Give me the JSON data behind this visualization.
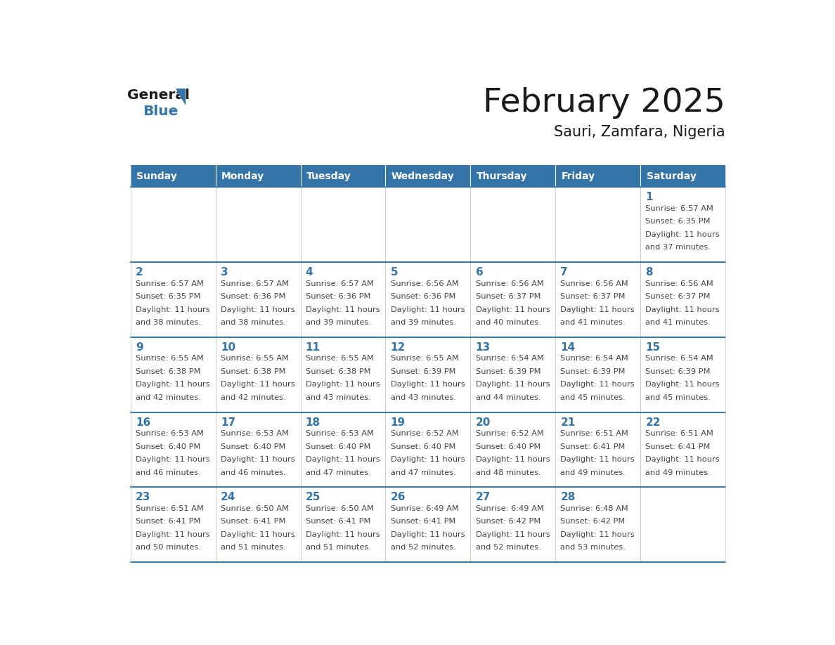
{
  "title": "February 2025",
  "subtitle": "Sauri, Zamfara, Nigeria",
  "header_color": "#3574A8",
  "header_text_color": "#FFFFFF",
  "border_color": "#3574A8",
  "day_headers": [
    "Sunday",
    "Monday",
    "Tuesday",
    "Wednesday",
    "Thursday",
    "Friday",
    "Saturday"
  ],
  "title_color": "#1a1a1a",
  "subtitle_color": "#1a1a1a",
  "day_num_color": "#3574A8",
  "cell_text_color": "#444444",
  "logo_general_color": "#1a1a1a",
  "logo_blue_color": "#3574A8",
  "logo_triangle_color": "#3574A8",
  "calendar_data": [
    [
      {
        "day": null,
        "sunrise": null,
        "sunset": null,
        "daylight": null
      },
      {
        "day": null,
        "sunrise": null,
        "sunset": null,
        "daylight": null
      },
      {
        "day": null,
        "sunrise": null,
        "sunset": null,
        "daylight": null
      },
      {
        "day": null,
        "sunrise": null,
        "sunset": null,
        "daylight": null
      },
      {
        "day": null,
        "sunrise": null,
        "sunset": null,
        "daylight": null
      },
      {
        "day": null,
        "sunrise": null,
        "sunset": null,
        "daylight": null
      },
      {
        "day": 1,
        "sunrise": "6:57 AM",
        "sunset": "6:35 PM",
        "daylight_line1": "Daylight: 11 hours",
        "daylight_line2": "and 37 minutes."
      }
    ],
    [
      {
        "day": 2,
        "sunrise": "6:57 AM",
        "sunset": "6:35 PM",
        "daylight_line1": "Daylight: 11 hours",
        "daylight_line2": "and 38 minutes."
      },
      {
        "day": 3,
        "sunrise": "6:57 AM",
        "sunset": "6:36 PM",
        "daylight_line1": "Daylight: 11 hours",
        "daylight_line2": "and 38 minutes."
      },
      {
        "day": 4,
        "sunrise": "6:57 AM",
        "sunset": "6:36 PM",
        "daylight_line1": "Daylight: 11 hours",
        "daylight_line2": "and 39 minutes."
      },
      {
        "day": 5,
        "sunrise": "6:56 AM",
        "sunset": "6:36 PM",
        "daylight_line1": "Daylight: 11 hours",
        "daylight_line2": "and 39 minutes."
      },
      {
        "day": 6,
        "sunrise": "6:56 AM",
        "sunset": "6:37 PM",
        "daylight_line1": "Daylight: 11 hours",
        "daylight_line2": "and 40 minutes."
      },
      {
        "day": 7,
        "sunrise": "6:56 AM",
        "sunset": "6:37 PM",
        "daylight_line1": "Daylight: 11 hours",
        "daylight_line2": "and 41 minutes."
      },
      {
        "day": 8,
        "sunrise": "6:56 AM",
        "sunset": "6:37 PM",
        "daylight_line1": "Daylight: 11 hours",
        "daylight_line2": "and 41 minutes."
      }
    ],
    [
      {
        "day": 9,
        "sunrise": "6:55 AM",
        "sunset": "6:38 PM",
        "daylight_line1": "Daylight: 11 hours",
        "daylight_line2": "and 42 minutes."
      },
      {
        "day": 10,
        "sunrise": "6:55 AM",
        "sunset": "6:38 PM",
        "daylight_line1": "Daylight: 11 hours",
        "daylight_line2": "and 42 minutes."
      },
      {
        "day": 11,
        "sunrise": "6:55 AM",
        "sunset": "6:38 PM",
        "daylight_line1": "Daylight: 11 hours",
        "daylight_line2": "and 43 minutes."
      },
      {
        "day": 12,
        "sunrise": "6:55 AM",
        "sunset": "6:39 PM",
        "daylight_line1": "Daylight: 11 hours",
        "daylight_line2": "and 43 minutes."
      },
      {
        "day": 13,
        "sunrise": "6:54 AM",
        "sunset": "6:39 PM",
        "daylight_line1": "Daylight: 11 hours",
        "daylight_line2": "and 44 minutes."
      },
      {
        "day": 14,
        "sunrise": "6:54 AM",
        "sunset": "6:39 PM",
        "daylight_line1": "Daylight: 11 hours",
        "daylight_line2": "and 45 minutes."
      },
      {
        "day": 15,
        "sunrise": "6:54 AM",
        "sunset": "6:39 PM",
        "daylight_line1": "Daylight: 11 hours",
        "daylight_line2": "and 45 minutes."
      }
    ],
    [
      {
        "day": 16,
        "sunrise": "6:53 AM",
        "sunset": "6:40 PM",
        "daylight_line1": "Daylight: 11 hours",
        "daylight_line2": "and 46 minutes."
      },
      {
        "day": 17,
        "sunrise": "6:53 AM",
        "sunset": "6:40 PM",
        "daylight_line1": "Daylight: 11 hours",
        "daylight_line2": "and 46 minutes."
      },
      {
        "day": 18,
        "sunrise": "6:53 AM",
        "sunset": "6:40 PM",
        "daylight_line1": "Daylight: 11 hours",
        "daylight_line2": "and 47 minutes."
      },
      {
        "day": 19,
        "sunrise": "6:52 AM",
        "sunset": "6:40 PM",
        "daylight_line1": "Daylight: 11 hours",
        "daylight_line2": "and 47 minutes."
      },
      {
        "day": 20,
        "sunrise": "6:52 AM",
        "sunset": "6:40 PM",
        "daylight_line1": "Daylight: 11 hours",
        "daylight_line2": "and 48 minutes."
      },
      {
        "day": 21,
        "sunrise": "6:51 AM",
        "sunset": "6:41 PM",
        "daylight_line1": "Daylight: 11 hours",
        "daylight_line2": "and 49 minutes."
      },
      {
        "day": 22,
        "sunrise": "6:51 AM",
        "sunset": "6:41 PM",
        "daylight_line1": "Daylight: 11 hours",
        "daylight_line2": "and 49 minutes."
      }
    ],
    [
      {
        "day": 23,
        "sunrise": "6:51 AM",
        "sunset": "6:41 PM",
        "daylight_line1": "Daylight: 11 hours",
        "daylight_line2": "and 50 minutes."
      },
      {
        "day": 24,
        "sunrise": "6:50 AM",
        "sunset": "6:41 PM",
        "daylight_line1": "Daylight: 11 hours",
        "daylight_line2": "and 51 minutes."
      },
      {
        "day": 25,
        "sunrise": "6:50 AM",
        "sunset": "6:41 PM",
        "daylight_line1": "Daylight: 11 hours",
        "daylight_line2": "and 51 minutes."
      },
      {
        "day": 26,
        "sunrise": "6:49 AM",
        "sunset": "6:41 PM",
        "daylight_line1": "Daylight: 11 hours",
        "daylight_line2": "and 52 minutes."
      },
      {
        "day": 27,
        "sunrise": "6:49 AM",
        "sunset": "6:42 PM",
        "daylight_line1": "Daylight: 11 hours",
        "daylight_line2": "and 52 minutes."
      },
      {
        "day": 28,
        "sunrise": "6:48 AM",
        "sunset": "6:42 PM",
        "daylight_line1": "Daylight: 11 hours",
        "daylight_line2": "and 53 minutes."
      },
      {
        "day": null,
        "sunrise": null,
        "sunset": null,
        "daylight_line1": null,
        "daylight_line2": null
      }
    ]
  ]
}
